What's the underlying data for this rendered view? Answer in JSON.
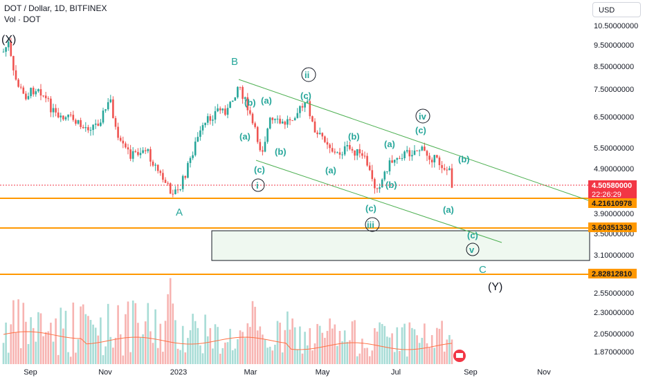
{
  "header": {
    "symbol_line": "DOT / Dollar, 1D, BITFINEX",
    "volume_line": "Vol · DOT",
    "currency_button": "USD"
  },
  "chart_data": {
    "type": "candlestick",
    "price_axis_ticks": [
      "10.50000000",
      "9.50000000",
      "8.50000000",
      "7.50000000",
      "6.50000000",
      "5.50000000",
      "4.90000000",
      "3.90000000",
      "3.50000000",
      "3.10000000",
      "2.55000000",
      "2.30000000",
      "2.05000000",
      "1.87000000"
    ],
    "time_axis_ticks": [
      "Sep",
      "Nov",
      "2023",
      "Mar",
      "May",
      "Jul",
      "Sep",
      "Nov"
    ],
    "price_labels": [
      {
        "value": "4.50580000",
        "sub": "22:26:29",
        "color": "#f23645"
      },
      {
        "value": "4.21610978",
        "color": "#ff9800"
      },
      {
        "value": "3.60351330",
        "color": "#ff9800"
      },
      {
        "value": "2.82812810",
        "color": "#ff9800"
      }
    ],
    "horizontal_levels": [
      4.21610978,
      3.6035133,
      2.8281281
    ],
    "current_price": 4.5058,
    "wave_labels": {
      "X": "(X)",
      "A": "A",
      "B": "B",
      "C": "C",
      "Y": "(Y)",
      "i": "i",
      "ii": "ii",
      "iii": "iii",
      "iv": "iv",
      "v": "v",
      "a": "(a)",
      "b": "(b)",
      "c": "(c)"
    },
    "colors": {
      "up": "#26a69a",
      "down": "#ef5350",
      "level": "#ff9800",
      "channel": "#4caf50",
      "wave": "#26a69a"
    }
  }
}
